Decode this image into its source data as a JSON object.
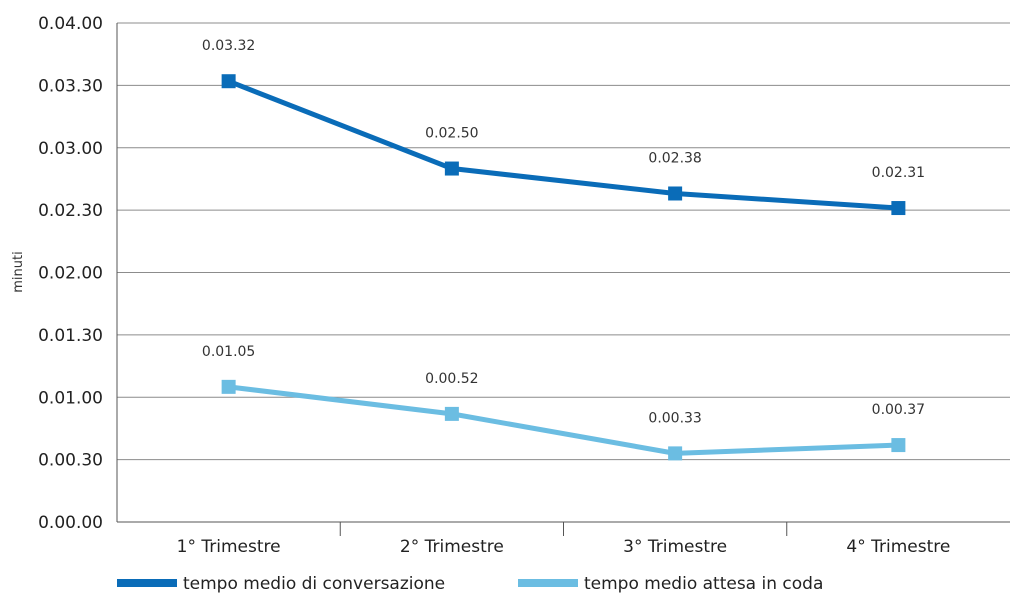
{
  "chart_data": {
    "type": "line",
    "ylabel": "minuti",
    "categories": [
      "1° Trimestre",
      "2° Trimestre",
      "3° Trimestre",
      "4° Trimestre"
    ],
    "y_ticks": [
      "0.00.00",
      "0.00.30",
      "0.01.00",
      "0.01.30",
      "0.02.00",
      "0.02.30",
      "0.03.00",
      "0.03.30",
      "0.04.00"
    ],
    "ylim": [
      0,
      240
    ],
    "grid": true,
    "legend_position": "bottom",
    "series": [
      {
        "name": "tempo medio di conversazione",
        "color": "#0a6cb8",
        "values": [
          212,
          170,
          158,
          151
        ],
        "labels": [
          "0.03.32",
          "0.02.50",
          "0.02.38",
          "0.02.31"
        ]
      },
      {
        "name": "tempo medio attesa in coda",
        "color": "#6bbde2",
        "values": [
          65,
          52,
          33,
          37
        ],
        "labels": [
          "0.01.05",
          "0.00.52",
          "0.00.33",
          "0.00.37"
        ]
      }
    ]
  }
}
